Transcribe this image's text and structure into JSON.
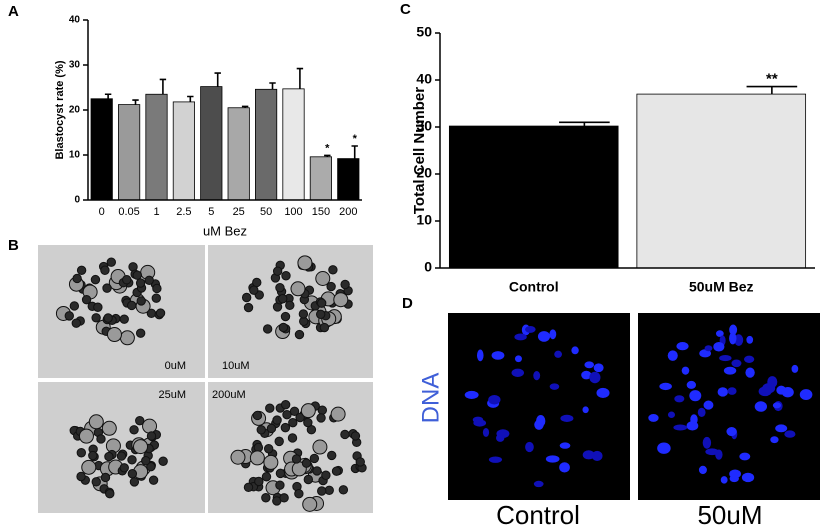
{
  "chart_data": [
    {
      "type": "bar",
      "y_label": "Blastocyst rate (%)",
      "x_label": "uM Bez",
      "categories": [
        "0",
        "0.05",
        "1",
        "2.5",
        "5",
        "25",
        "50",
        "100",
        "150",
        "200"
      ],
      "values": [
        22.5,
        21.2,
        23.5,
        21.8,
        25.2,
        20.5,
        24.6,
        24.7,
        9.6,
        9.2
      ],
      "errors": [
        1.0,
        1.0,
        3.3,
        1.2,
        3.0,
        0.3,
        1.4,
        4.5,
        0.3,
        2.8
      ],
      "colors": [
        "#000000",
        "#9a9a9a",
        "#7a7a7a",
        "#d2d2d2",
        "#4d4d4d",
        "#a8a8a8",
        "#6a6a6a",
        "#e8e8e8",
        "#ababab",
        "#000000"
      ],
      "significance": [
        null,
        null,
        null,
        null,
        null,
        null,
        null,
        null,
        "*",
        "*"
      ],
      "ylim": [
        0,
        40
      ],
      "yticks": [
        0,
        10,
        20,
        30,
        40
      ]
    },
    {
      "type": "bar",
      "y_label": "Total Cell Number",
      "categories": [
        "Control",
        "50uM Bez"
      ],
      "values": [
        30.2,
        37.0
      ],
      "errors": [
        0.8,
        1.6
      ],
      "colors": [
        "#000000",
        "#e6e6e6"
      ],
      "significance": [
        null,
        "**"
      ],
      "ylim": [
        0,
        50
      ],
      "yticks": [
        0,
        10,
        20,
        30,
        40,
        50
      ]
    }
  ],
  "panel_labels": [
    "A",
    "B",
    "C",
    "D"
  ],
  "micrographs": {
    "labels": [
      "0uM",
      "10uM",
      "25uM",
      "200uM"
    ]
  },
  "fluorescence": {
    "stain": "DNA",
    "labels": [
      "Control",
      "50uM"
    ]
  }
}
